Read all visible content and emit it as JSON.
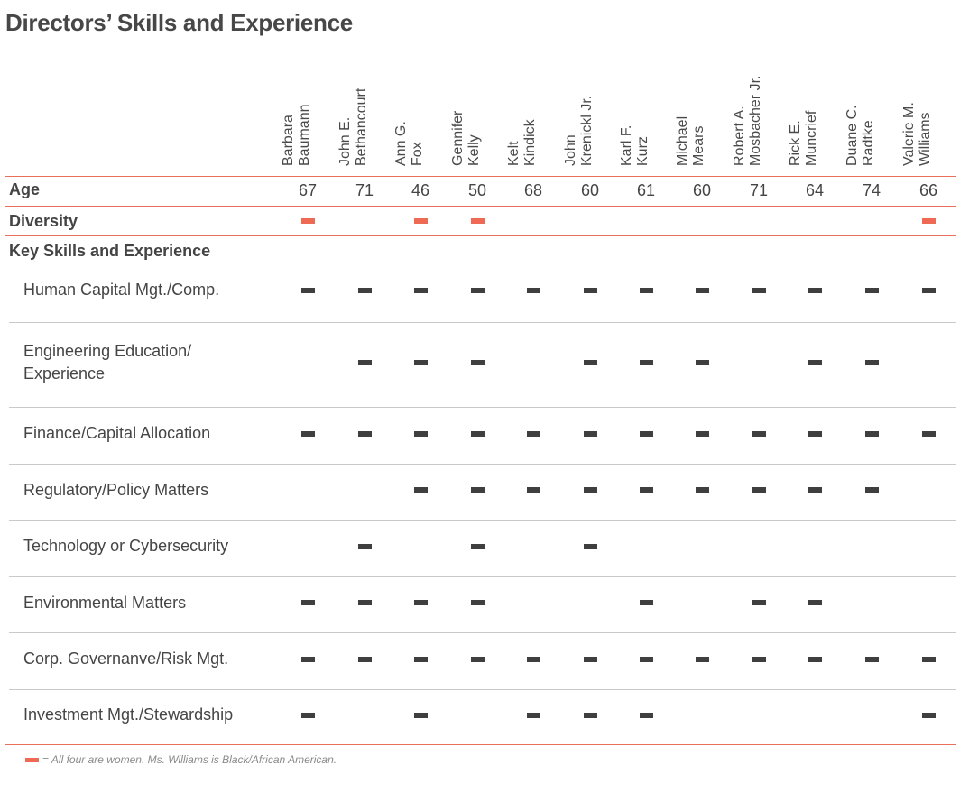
{
  "title": "Directors’ Skills and Experience",
  "directors": [
    {
      "line1": "Barbara",
      "line2": "Baumann",
      "age": "67",
      "diversity": true
    },
    {
      "line1": "John E.",
      "line2": "Bethancourt",
      "age": "71",
      "diversity": false
    },
    {
      "line1": "Ann G.",
      "line2": "Fox",
      "age": "46",
      "diversity": true
    },
    {
      "line1": "Gennifer",
      "line2": "Kelly",
      "age": "50",
      "diversity": true
    },
    {
      "line1": "Kelt",
      "line2": "Kindick",
      "age": "68",
      "diversity": false
    },
    {
      "line1": "John",
      "line2": "Krenickl Jr.",
      "age": "60",
      "diversity": false
    },
    {
      "line1": "Karl F.",
      "line2": "Kurz",
      "age": "61",
      "diversity": false
    },
    {
      "line1": "Michael",
      "line2": "Mears",
      "age": "60",
      "diversity": false
    },
    {
      "line1": "Robert A.",
      "line2": "Mosbacher Jr.",
      "age": "71",
      "diversity": false
    },
    {
      "line1": "Rick E.",
      "line2": "Muncrief",
      "age": "64",
      "diversity": false
    },
    {
      "line1": "Duane C.",
      "line2": "Radtke",
      "age": "74",
      "diversity": false
    },
    {
      "line1": "Valerie M.",
      "line2": "Williams",
      "age": "66",
      "diversity": true
    }
  ],
  "rows": {
    "age_label": "Age",
    "diversity_label": "Diversity",
    "skills_heading": "Key Skills and Experience"
  },
  "skills": [
    {
      "label": [
        "Human Capital Mgt./Comp."
      ],
      "marks": [
        1,
        1,
        1,
        1,
        1,
        1,
        1,
        1,
        1,
        1,
        1,
        1
      ]
    },
    {
      "label": [
        "Engineering Education/",
        "Experience"
      ],
      "marks": [
        0,
        1,
        1,
        1,
        0,
        1,
        1,
        1,
        0,
        1,
        1,
        0
      ]
    },
    {
      "label": [
        "Finance/Capital Allocation"
      ],
      "marks": [
        1,
        1,
        1,
        1,
        1,
        1,
        1,
        1,
        1,
        1,
        1,
        1
      ]
    },
    {
      "label": [
        "Regulatory/Policy Matters"
      ],
      "marks": [
        0,
        0,
        1,
        1,
        1,
        1,
        1,
        1,
        1,
        1,
        1,
        0
      ]
    },
    {
      "label": [
        "Technology or Cybersecurity"
      ],
      "marks": [
        0,
        1,
        0,
        1,
        0,
        1,
        0,
        0,
        0,
        0,
        0,
        0
      ]
    },
    {
      "label": [
        "Environmental Matters"
      ],
      "marks": [
        1,
        1,
        1,
        1,
        0,
        0,
        1,
        0,
        1,
        1,
        0,
        0
      ]
    },
    {
      "label": [
        "Corp. Governanve/Risk Mgt."
      ],
      "marks": [
        1,
        1,
        1,
        1,
        1,
        1,
        1,
        1,
        1,
        1,
        1,
        1
      ]
    },
    {
      "label": [
        "Investment Mgt./Stewardship"
      ],
      "marks": [
        1,
        0,
        1,
        0,
        1,
        1,
        1,
        0,
        0,
        0,
        0,
        1
      ]
    }
  ],
  "legend": {
    "text": "= All four are women. Ms. Williams is Black/African American."
  },
  "colors": {
    "accent_red": "#ee6a54",
    "mark_dark": "#3f3f3f",
    "rule_gray": "#c9c9c9"
  }
}
